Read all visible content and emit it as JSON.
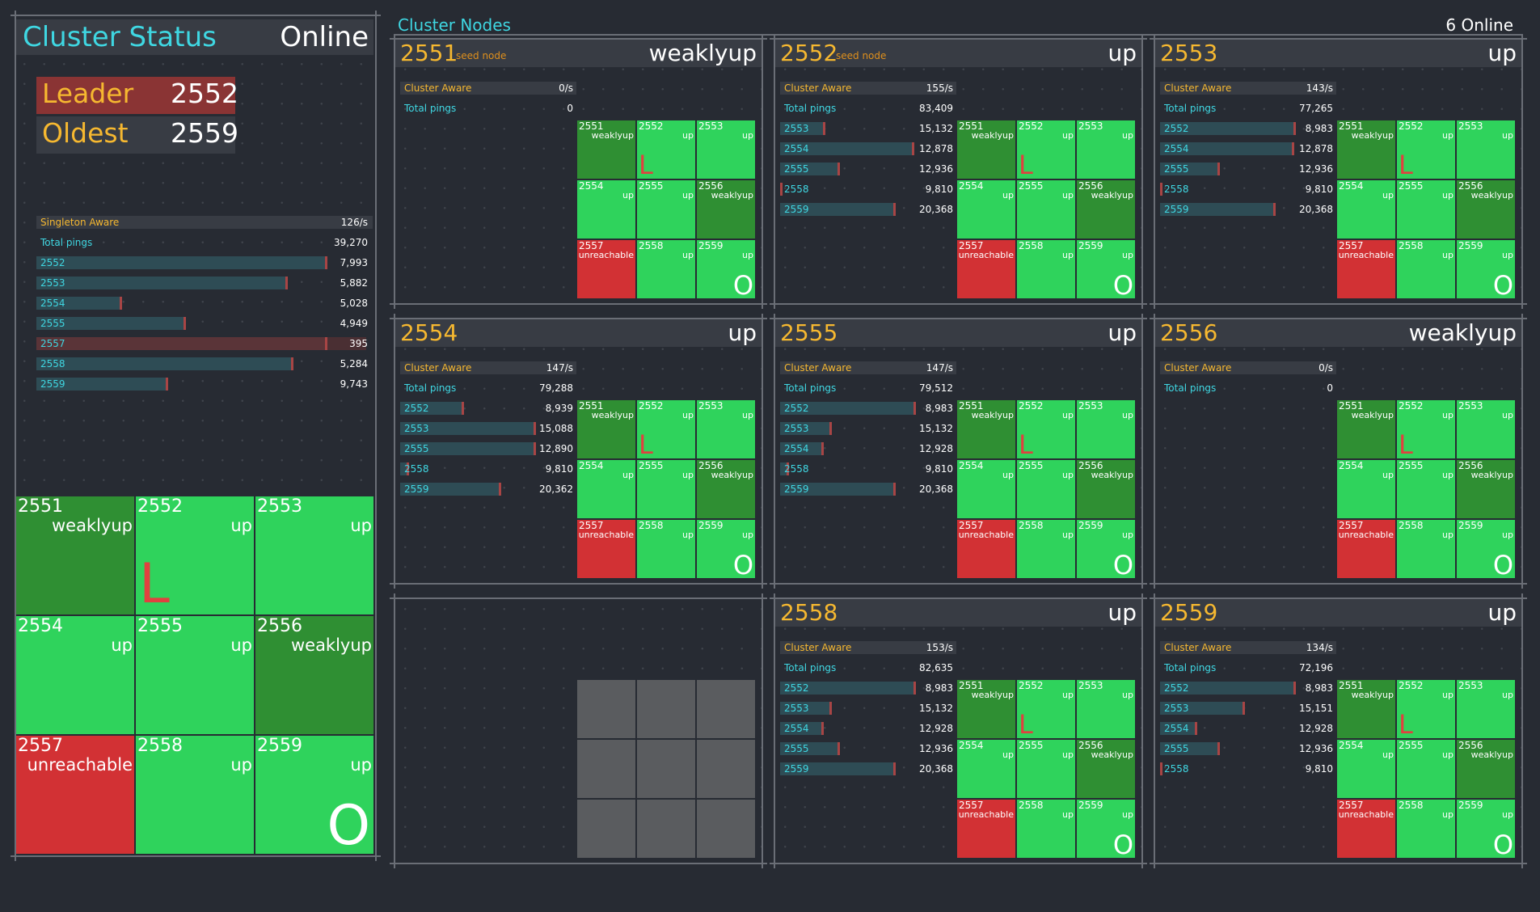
{
  "status": {
    "title": "Cluster Status",
    "state": "Online",
    "leader_label": "Leader",
    "leader_value": "2552",
    "oldest_label": "Oldest",
    "oldest_value": "2559",
    "singleton_label": "Singleton Aware",
    "singleton_rate": "126/s",
    "total_pings_label": "Total pings",
    "total_pings": "39,270",
    "pings": [
      {
        "node": "2552",
        "value": "7,993",
        "level": 0.94,
        "highlight": false
      },
      {
        "node": "2553",
        "value": "5,882",
        "level": 0.81,
        "highlight": false
      },
      {
        "node": "2554",
        "value": "5,028",
        "level": 0.27,
        "highlight": false
      },
      {
        "node": "2555",
        "value": "4,949",
        "level": 0.48,
        "highlight": false
      },
      {
        "node": "2557",
        "value": "395",
        "level": 0.94,
        "highlight": true
      },
      {
        "node": "2558",
        "value": "5,284",
        "level": 0.83,
        "highlight": false
      },
      {
        "node": "2559",
        "value": "9,743",
        "level": 0.42,
        "highlight": false
      }
    ],
    "grid": [
      {
        "id": "2551",
        "state": "weaklyup",
        "color": "weak",
        "mark": ""
      },
      {
        "id": "2552",
        "state": "up",
        "color": "up",
        "mark": "L"
      },
      {
        "id": "2553",
        "state": "up",
        "color": "up",
        "mark": ""
      },
      {
        "id": "2554",
        "state": "up",
        "color": "up",
        "mark": ""
      },
      {
        "id": "2555",
        "state": "up",
        "color": "up",
        "mark": ""
      },
      {
        "id": "2556",
        "state": "weaklyup",
        "color": "weak",
        "mark": ""
      },
      {
        "id": "2557",
        "state": "unreachable",
        "color": "unr",
        "mark": ""
      },
      {
        "id": "2558",
        "state": "up",
        "color": "up",
        "mark": ""
      },
      {
        "id": "2559",
        "state": "up",
        "color": "up",
        "mark": "O"
      }
    ]
  },
  "nodes_header": {
    "title": "Cluster Nodes",
    "online": "6 Online"
  },
  "colors": {
    "bg": "#272b33",
    "up": "#2fd35c",
    "weaklyup": "#2f8f33",
    "unreachable": "#d23134",
    "accent_yellow": "#f6b830",
    "accent_cyan": "#3fd7e2",
    "leader_bg": "#8a3434"
  },
  "std_grid": [
    {
      "id": "2551",
      "state": "weaklyup",
      "color": "weak",
      "mark": ""
    },
    {
      "id": "2552",
      "state": "up",
      "color": "up",
      "mark": "L"
    },
    {
      "id": "2553",
      "state": "up",
      "color": "up",
      "mark": ""
    },
    {
      "id": "2554",
      "state": "up",
      "color": "up",
      "mark": ""
    },
    {
      "id": "2555",
      "state": "up",
      "color": "up",
      "mark": ""
    },
    {
      "id": "2556",
      "state": "weaklyup",
      "color": "weak",
      "mark": ""
    },
    {
      "id": "2557",
      "state": "unreachable",
      "color": "unr",
      "mark": ""
    },
    {
      "id": "2558",
      "state": "up",
      "color": "up",
      "mark": ""
    },
    {
      "id": "2559",
      "state": "up",
      "color": "up",
      "mark": "O"
    }
  ],
  "cards": [
    {
      "id": "2551",
      "tag": "seed node",
      "state": "weaklyup",
      "aware_label": "Cluster Aware",
      "rate": "0/s",
      "pings_label": "Total pings",
      "pings": "0",
      "rows": []
    },
    {
      "id": "2552",
      "tag": "seed node",
      "state": "up",
      "aware_label": "Cluster Aware",
      "rate": "155/s",
      "pings_label": "Total pings",
      "pings": "83,409",
      "rows": [
        {
          "node": "2553",
          "value": "15,132",
          "level": 0.32
        },
        {
          "node": "2554",
          "value": "12,878",
          "level": 0.99
        },
        {
          "node": "2555",
          "value": "12,936",
          "level": 0.43
        },
        {
          "node": "2558",
          "value": "9,810",
          "level": 0.0
        },
        {
          "node": "2559",
          "value": "20,368",
          "level": 0.85
        }
      ]
    },
    {
      "id": "2553",
      "tag": "",
      "state": "up",
      "aware_label": "Cluster Aware",
      "rate": "143/s",
      "pings_label": "Total pings",
      "pings": "77,265",
      "rows": [
        {
          "node": "2552",
          "value": "8,983",
          "level": 1.0
        },
        {
          "node": "2554",
          "value": "12,878",
          "level": 0.99
        },
        {
          "node": "2555",
          "value": "12,936",
          "level": 0.43
        },
        {
          "node": "2558",
          "value": "9,810",
          "level": 0.0
        },
        {
          "node": "2559",
          "value": "20,368",
          "level": 0.85
        }
      ]
    },
    {
      "id": "2554",
      "tag": "",
      "state": "up",
      "aware_label": "Cluster Aware",
      "rate": "147/s",
      "pings_label": "Total pings",
      "pings": "79,288",
      "rows": [
        {
          "node": "2552",
          "value": "8,939",
          "level": 0.46
        },
        {
          "node": "2553",
          "value": "15,088",
          "level": 1.0
        },
        {
          "node": "2555",
          "value": "12,890",
          "level": 1.0
        },
        {
          "node": "2558",
          "value": "9,810",
          "level": 0.05
        },
        {
          "node": "2559",
          "value": "20,362",
          "level": 0.74
        }
      ]
    },
    {
      "id": "2555",
      "tag": "",
      "state": "up",
      "aware_label": "Cluster Aware",
      "rate": "147/s",
      "pings_label": "Total pings",
      "pings": "79,512",
      "rows": [
        {
          "node": "2552",
          "value": "8,983",
          "level": 1.0
        },
        {
          "node": "2553",
          "value": "15,132",
          "level": 0.37
        },
        {
          "node": "2554",
          "value": "12,928",
          "level": 0.31
        },
        {
          "node": "2558",
          "value": "9,810",
          "level": 0.05
        },
        {
          "node": "2559",
          "value": "20,368",
          "level": 0.85
        }
      ]
    },
    {
      "id": "2556",
      "tag": "",
      "state": "weaklyup",
      "aware_label": "Cluster Aware",
      "rate": "0/s",
      "pings_label": "Total pings",
      "pings": "0",
      "rows": []
    },
    {
      "id": "",
      "tag": "",
      "state": "",
      "empty": true
    },
    {
      "id": "2558",
      "tag": "",
      "state": "up",
      "aware_label": "Cluster Aware",
      "rate": "153/s",
      "pings_label": "Total pings",
      "pings": "82,635",
      "rows": [
        {
          "node": "2552",
          "value": "8,983",
          "level": 1.0
        },
        {
          "node": "2553",
          "value": "15,132",
          "level": 0.37
        },
        {
          "node": "2554",
          "value": "12,928",
          "level": 0.31
        },
        {
          "node": "2555",
          "value": "12,936",
          "level": 0.43
        },
        {
          "node": "2559",
          "value": "20,368",
          "level": 0.85
        }
      ]
    },
    {
      "id": "2559",
      "tag": "",
      "state": "up",
      "aware_label": "Cluster Aware",
      "rate": "134/s",
      "pings_label": "Total pings",
      "pings": "72,196",
      "rows": [
        {
          "node": "2552",
          "value": "8,983",
          "level": 1.0
        },
        {
          "node": "2553",
          "value": "15,151",
          "level": 0.62
        },
        {
          "node": "2554",
          "value": "12,928",
          "level": 0.26
        },
        {
          "node": "2555",
          "value": "12,936",
          "level": 0.43
        },
        {
          "node": "2558",
          "value": "9,810",
          "level": 0.0
        }
      ]
    }
  ]
}
